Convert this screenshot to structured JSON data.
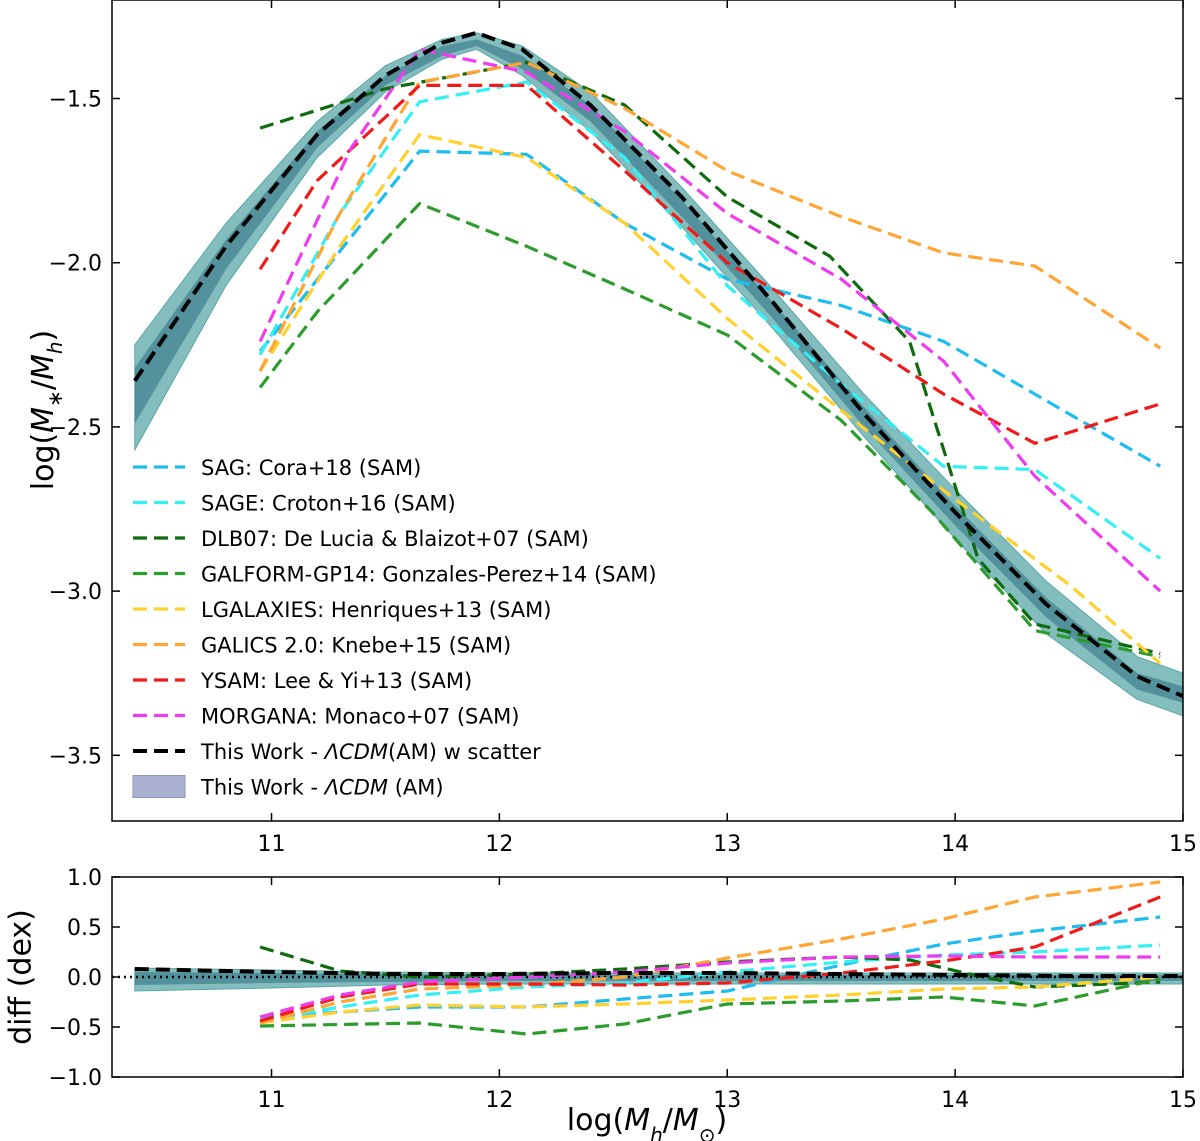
{
  "chart_data": [
    {
      "id": "main",
      "type": "line",
      "title": "",
      "xlabel": "",
      "ylabel": "log(M∗/Mh)",
      "xlim": [
        10.3,
        15.0
      ],
      "ylim": [
        -3.7,
        -1.2
      ],
      "xticks": [
        11,
        12,
        13,
        14,
        15
      ],
      "xtick_labels": [
        "11",
        "12",
        "13",
        "14",
        "15"
      ],
      "yticks": [
        -1.5,
        -2.0,
        -2.5,
        -3.0,
        -3.5
      ],
      "ytick_labels": [
        "−1.5",
        "−2.0",
        "−2.5",
        "−3.0",
        "−3.5"
      ],
      "legend_position": "lower-left",
      "band": {
        "name": "This Work - ΛCDM (AM)",
        "legend_prefix": "This Work - ",
        "legend_italic": "ΛCDM",
        "legend_suffix": " (AM)",
        "color": "#5aa7a7",
        "x": [
          10.4,
          10.8,
          11.2,
          11.5,
          11.75,
          11.9,
          12.1,
          12.4,
          12.8,
          13.2,
          13.6,
          14.0,
          14.4,
          14.8,
          15.0
        ],
        "outer_upper": [
          -2.25,
          -1.88,
          -1.57,
          -1.4,
          -1.32,
          -1.3,
          -1.34,
          -1.48,
          -1.77,
          -2.08,
          -2.4,
          -2.69,
          -2.97,
          -3.2,
          -3.25
        ],
        "outer_lower": [
          -2.57,
          -2.07,
          -1.68,
          -1.48,
          -1.38,
          -1.35,
          -1.43,
          -1.6,
          -1.89,
          -2.2,
          -2.53,
          -2.84,
          -3.13,
          -3.33,
          -3.38
        ],
        "inner_upper": [
          -2.32,
          -1.93,
          -1.6,
          -1.43,
          -1.34,
          -1.32,
          -1.37,
          -1.52,
          -1.81,
          -2.12,
          -2.44,
          -2.74,
          -3.02,
          -3.25,
          -3.29
        ],
        "inner_lower": [
          -2.49,
          -2.02,
          -1.65,
          -1.46,
          -1.37,
          -1.34,
          -1.41,
          -1.57,
          -1.86,
          -2.17,
          -2.5,
          -2.8,
          -3.08,
          -3.3,
          -3.34
        ]
      },
      "series": [
        {
          "name": "SAG: Cora+18 (SAM)",
          "color": "#1ebdf0",
          "x": [
            10.95,
            11.65,
            12.12,
            12.55,
            13.0,
            13.5,
            13.95,
            14.35,
            14.9
          ],
          "y": [
            -2.27,
            -1.66,
            -1.67,
            -1.88,
            -2.05,
            -2.13,
            -2.24,
            -2.4,
            -2.62
          ]
        },
        {
          "name": "SAGE: Croton+16 (SAM)",
          "color": "#33f0f5",
          "x": [
            10.95,
            11.3,
            11.65,
            12.12,
            12.55,
            13.0,
            13.5,
            13.95,
            14.35,
            14.9
          ],
          "y": [
            -2.28,
            -1.85,
            -1.51,
            -1.45,
            -1.68,
            -2.07,
            -2.37,
            -2.62,
            -2.63,
            -2.9
          ]
        },
        {
          "name": "DLB07: De Lucia & Blaizot+07 (SAM)",
          "color": "#0e6b0e",
          "x": [
            10.95,
            11.5,
            12.12,
            12.55,
            13.0,
            13.45,
            13.8,
            14.1,
            14.35,
            14.9
          ],
          "y": [
            -1.59,
            -1.47,
            -1.39,
            -1.52,
            -1.8,
            -1.98,
            -2.24,
            -2.9,
            -3.1,
            -3.19
          ]
        },
        {
          "name": "GALFORM-GP14: Gonzales-Perez+14 (SAM)",
          "color": "#2c9c2c",
          "x": [
            10.95,
            11.2,
            11.65,
            12.12,
            12.55,
            13.0,
            13.5,
            13.9,
            14.35,
            14.9
          ],
          "y": [
            -2.38,
            -2.15,
            -1.82,
            -1.95,
            -2.08,
            -2.22,
            -2.48,
            -2.76,
            -3.12,
            -3.2
          ]
        },
        {
          "name": "LGALAXIES: Henriques+13 (SAM)",
          "color": "#ffd02e",
          "x": [
            10.95,
            11.3,
            11.65,
            12.12,
            12.55,
            13.0,
            13.5,
            14.0,
            14.5,
            14.9
          ],
          "y": [
            -2.33,
            -1.95,
            -1.61,
            -1.68,
            -1.88,
            -2.17,
            -2.45,
            -2.72,
            -2.98,
            -3.22
          ]
        },
        {
          "name": "GALICS 2.0: Knebe+15 (SAM)",
          "color": "#ffa533",
          "x": [
            10.95,
            11.3,
            11.65,
            12.12,
            12.55,
            13.0,
            13.5,
            13.95,
            14.35,
            14.9
          ],
          "y": [
            -2.33,
            -1.85,
            -1.45,
            -1.39,
            -1.53,
            -1.72,
            -1.86,
            -1.97,
            -2.01,
            -2.26
          ]
        },
        {
          "name": "YSAM: Lee & Yi+13 (SAM)",
          "color": "#f01a1a",
          "x": [
            10.95,
            11.2,
            11.65,
            12.12,
            12.55,
            13.0,
            13.5,
            13.95,
            14.35,
            14.9
          ],
          "y": [
            -2.02,
            -1.75,
            -1.46,
            -1.46,
            -1.72,
            -2.0,
            -2.2,
            -2.4,
            -2.55,
            -2.43
          ]
        },
        {
          "name": "MORGANA: Monaco+07 (SAM)",
          "color": "#ef3cef",
          "x": [
            10.95,
            11.35,
            11.65,
            12.12,
            12.55,
            13.0,
            13.5,
            13.95,
            14.35,
            14.9
          ],
          "y": [
            -2.24,
            -1.65,
            -1.35,
            -1.42,
            -1.6,
            -1.85,
            -2.05,
            -2.3,
            -2.65,
            -3.0
          ]
        },
        {
          "name": "This Work - ΛCDM(AM) w scatter",
          "legend_prefix": "This Work - ",
          "legend_italic": "ΛCDM",
          "legend_suffix": "(AM) w scatter",
          "color": "#000000",
          "x": [
            10.4,
            10.8,
            11.2,
            11.5,
            11.75,
            11.9,
            12.1,
            12.4,
            12.8,
            13.2,
            13.6,
            14.0,
            14.4,
            14.8,
            15.0
          ],
          "y": [
            -2.36,
            -1.95,
            -1.61,
            -1.43,
            -1.33,
            -1.3,
            -1.35,
            -1.52,
            -1.8,
            -2.12,
            -2.46,
            -2.76,
            -3.04,
            -3.26,
            -3.32
          ]
        }
      ]
    },
    {
      "id": "diff",
      "type": "line",
      "title": "",
      "xlabel": "log(Mh/M⊙)",
      "ylabel": "diff (dex)",
      "xlim": [
        10.3,
        15.0
      ],
      "ylim": [
        -1.0,
        1.0
      ],
      "xticks": [
        11,
        12,
        13,
        14,
        15
      ],
      "xtick_labels": [
        "11",
        "12",
        "13",
        "14",
        "15"
      ],
      "yticks": [
        1.0,
        0.5,
        0.0,
        -0.5,
        -1.0
      ],
      "ytick_labels": [
        "1.0",
        "0.5",
        "0.0",
        "−0.5",
        "−1.0"
      ],
      "reference_line": 0.0,
      "band": {
        "color": "#5aa7a7",
        "x": [
          10.4,
          11.0,
          11.5,
          12.0,
          13.0,
          14.0,
          15.0
        ],
        "outer_upper": [
          0.09,
          0.07,
          0.05,
          0.04,
          0.04,
          0.04,
          0.04
        ],
        "outer_lower": [
          -0.14,
          -0.11,
          -0.08,
          -0.07,
          -0.07,
          -0.07,
          -0.07
        ],
        "inner_upper": [
          0.05,
          0.04,
          0.03,
          0.02,
          0.02,
          0.02,
          0.02
        ],
        "inner_lower": [
          -0.08,
          -0.06,
          -0.05,
          -0.04,
          -0.04,
          -0.04,
          -0.04
        ]
      },
      "series": [
        {
          "name": "SAG: Cora+18 (SAM)",
          "color": "#1ebdf0",
          "x": [
            10.95,
            11.65,
            12.12,
            12.55,
            13.0,
            13.5,
            13.95,
            14.35,
            14.9
          ],
          "y": [
            -0.4,
            -0.3,
            -0.3,
            -0.22,
            -0.14,
            0.12,
            0.33,
            0.46,
            0.6
          ]
        },
        {
          "name": "SAGE: Croton+16 (SAM)",
          "color": "#33f0f5",
          "x": [
            10.95,
            11.3,
            11.65,
            12.12,
            12.55,
            13.0,
            13.5,
            13.95,
            14.35,
            14.9
          ],
          "y": [
            -0.44,
            -0.3,
            -0.18,
            -0.1,
            -0.06,
            0.05,
            0.15,
            0.22,
            0.25,
            0.32
          ]
        },
        {
          "name": "DLB07: De Lucia & Blaizot+07 (SAM)",
          "color": "#0e6b0e",
          "x": [
            10.95,
            11.3,
            11.65,
            12.12,
            12.55,
            13.0,
            13.5,
            13.8,
            14.1,
            14.35,
            14.9
          ],
          "y": [
            0.3,
            0.06,
            0.0,
            0.03,
            0.08,
            0.15,
            0.2,
            0.17,
            0.01,
            -0.1,
            -0.05
          ]
        },
        {
          "name": "GALFORM-GP14: Gonzales-Perez+14 (SAM)",
          "color": "#2c9c2c",
          "x": [
            10.95,
            11.65,
            12.12,
            12.55,
            13.0,
            13.5,
            13.95,
            14.35,
            14.9
          ],
          "y": [
            -0.49,
            -0.46,
            -0.57,
            -0.47,
            -0.27,
            -0.24,
            -0.2,
            -0.29,
            -0.02
          ]
        },
        {
          "name": "LGALAXIES: Henriques+13 (SAM)",
          "color": "#ffd02e",
          "x": [
            10.95,
            11.3,
            11.65,
            12.12,
            12.55,
            13.0,
            13.5,
            13.95,
            14.35,
            14.9
          ],
          "y": [
            -0.46,
            -0.35,
            -0.28,
            -0.3,
            -0.27,
            -0.23,
            -0.18,
            -0.12,
            -0.1,
            0.0
          ]
        },
        {
          "name": "GALICS 2.0: Knebe+15 (SAM)",
          "color": "#ffa533",
          "x": [
            10.95,
            11.3,
            11.65,
            12.12,
            12.55,
            13.0,
            13.5,
            13.95,
            14.35,
            14.9
          ],
          "y": [
            -0.46,
            -0.25,
            -0.12,
            -0.08,
            0.0,
            0.19,
            0.38,
            0.58,
            0.8,
            0.95
          ]
        },
        {
          "name": "YSAM: Lee & Yi+13 (SAM)",
          "color": "#f01a1a",
          "x": [
            10.95,
            11.3,
            11.65,
            12.12,
            12.55,
            13.0,
            13.5,
            13.95,
            14.35,
            14.9
          ],
          "y": [
            -0.44,
            -0.2,
            -0.07,
            -0.07,
            -0.08,
            -0.06,
            0.04,
            0.16,
            0.3,
            0.8
          ]
        },
        {
          "name": "MORGANA: Monaco+07 (SAM)",
          "color": "#ef3cef",
          "x": [
            10.95,
            11.3,
            11.65,
            12.12,
            12.55,
            13.0,
            13.5,
            13.95,
            14.35,
            14.9
          ],
          "y": [
            -0.4,
            -0.18,
            -0.05,
            0.0,
            0.05,
            0.14,
            0.2,
            0.21,
            0.2,
            0.2
          ]
        },
        {
          "name": "This Work - ΛCDM(AM) w scatter",
          "color": "#000000",
          "x": [
            10.4,
            11.0,
            11.5,
            12.0,
            12.5,
            13.0,
            13.5,
            14.0,
            14.5,
            15.0
          ],
          "y": [
            0.08,
            0.05,
            0.03,
            0.03,
            0.04,
            0.04,
            0.03,
            0.02,
            0.01,
            0.01
          ]
        }
      ]
    }
  ]
}
